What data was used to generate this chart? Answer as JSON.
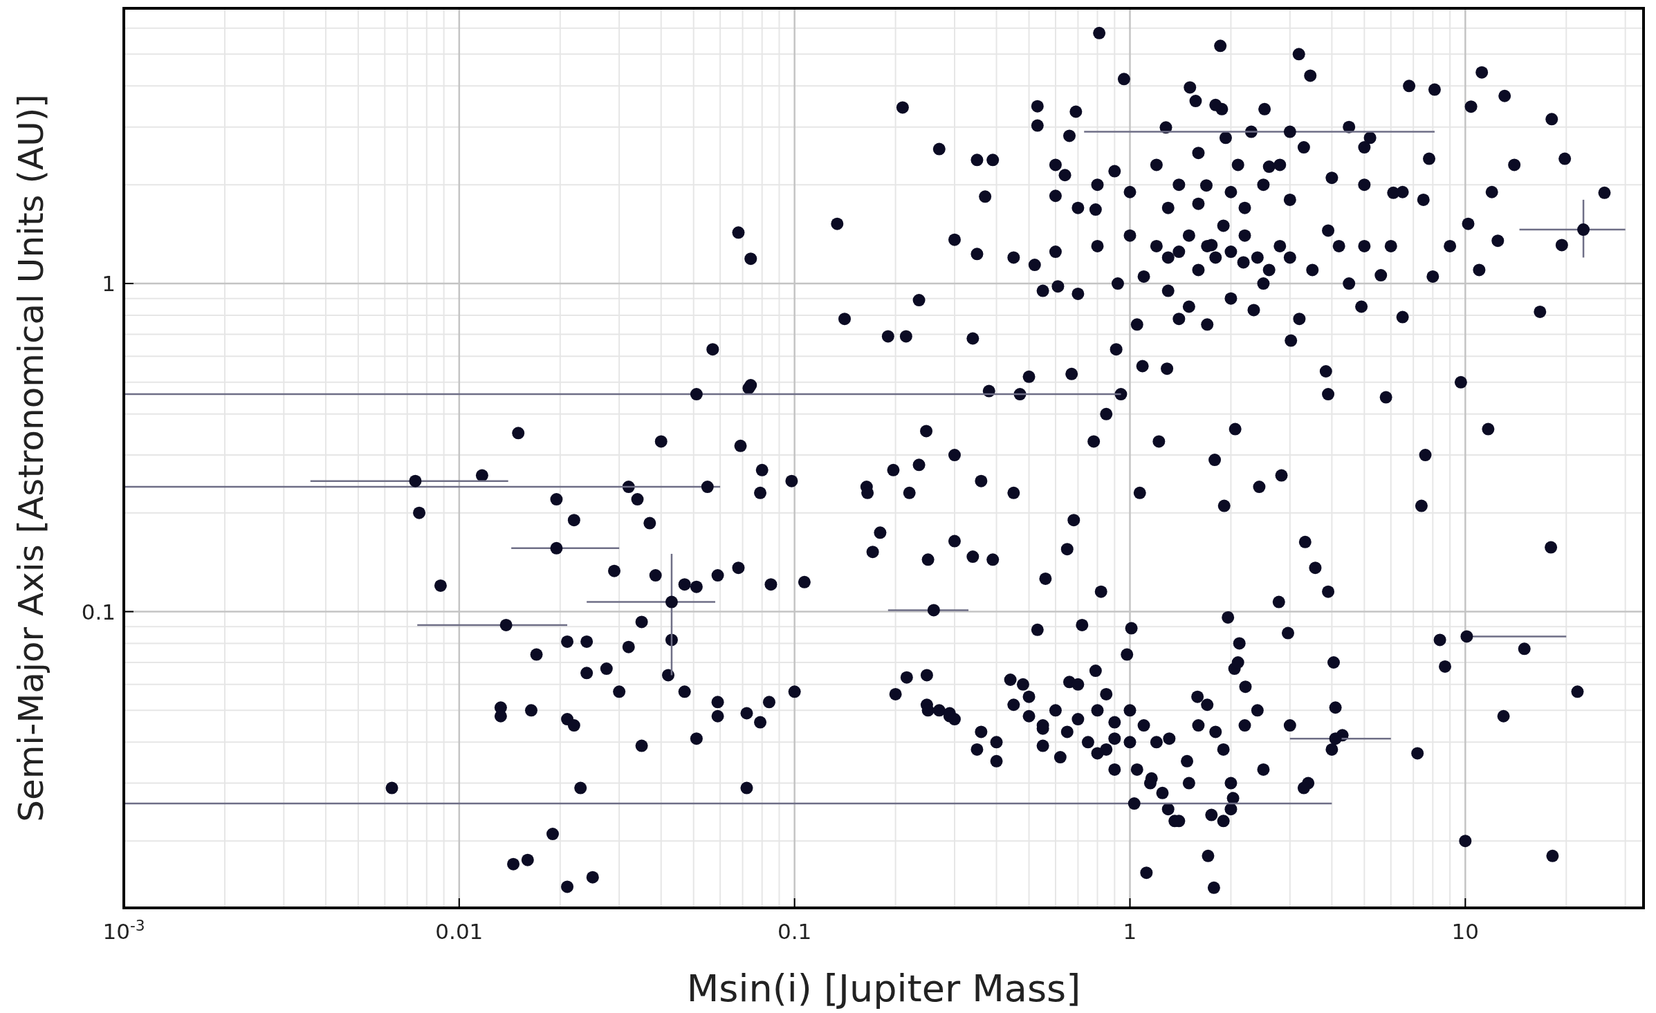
{
  "chart_data": {
    "type": "scatter",
    "xlabel": "Msin(i) [Jupiter Mass]",
    "ylabel": "Semi-Major Axis [Astronomical Units (AU)]",
    "log": "xy",
    "grid": true,
    "marker": "circle",
    "xlim": [
      0.001,
      34
    ],
    "ylim": [
      0.0125,
      6.9
    ],
    "xticks": [
      {
        "value": 0.001,
        "label": "10$^{-3}$"
      },
      0.01,
      0.1,
      1,
      10
    ],
    "yticks": [
      0.1,
      1
    ],
    "series": [
      {
        "color": "#0b0b24",
        "x": [
          0.0063,
          0.0076,
          0.0088,
          0.0117,
          0.015,
          0.0133,
          0.0133,
          0.0164,
          0.017,
          0.0195,
          0.021,
          0.024,
          0.021,
          0.022,
          0.022,
          0.019,
          0.021,
          0.025,
          0.0145,
          0.016,
          0.023,
          0.024,
          0.0275,
          0.029,
          0.03,
          0.032,
          0.034,
          0.032,
          0.035,
          0.035,
          0.037,
          0.0385,
          0.04,
          0.042,
          0.043,
          0.047,
          0.047,
          0.051,
          0.051,
          0.057,
          0.059,
          0.059,
          0.059,
          0.068,
          0.068,
          0.069,
          0.072,
          0.072,
          0.073,
          0.074,
          0.074,
          0.079,
          0.08,
          0.079,
          0.085,
          0.084,
          0.098,
          0.1,
          0.107,
          0.134,
          0.141,
          0.164,
          0.165,
          0.171,
          0.18,
          0.19,
          0.197,
          0.2,
          0.21,
          0.215,
          0.216,
          0.22,
          0.235,
          0.235,
          0.247,
          0.248,
          0.248,
          0.25,
          0.25,
          0.27,
          0.27,
          0.29,
          0.29,
          0.3,
          0.3,
          0.3,
          0.34,
          0.34,
          0.35,
          0.35,
          0.36,
          0.37,
          0.39,
          0.38,
          0.36,
          0.39,
          0.4,
          0.44,
          0.45,
          0.47,
          0.5,
          0.52,
          0.53,
          0.53,
          0.53,
          0.55,
          0.56,
          0.6,
          0.61,
          0.64,
          0.66,
          0.67,
          0.65,
          0.66,
          0.68,
          0.69,
          0.72,
          0.79,
          0.78,
          0.79,
          0.81,
          0.82,
          0.85,
          0.91,
          0.92,
          0.94,
          0.9,
          0.85,
          0.96,
          0.98,
          1.01,
          1.07,
          1.09,
          1.05,
          1.12,
          1.16,
          1.22,
          1.28,
          1.31,
          1.29,
          1.36,
          1.48,
          1.51,
          1.57,
          1.59,
          1.69,
          1.75,
          1.71,
          1.78,
          1.79,
          1.86,
          1.88,
          1.93,
          1.91,
          1.96,
          2.06,
          2.03,
          2.12,
          2.21,
          2.18,
          2.34,
          2.43,
          2.52,
          2.6,
          2.78,
          2.83,
          2.96,
          3.02,
          3.19,
          3.33,
          3.45,
          3.57,
          3.84,
          3.9,
          3.9,
          4.05,
          4.1,
          3.9,
          4.5,
          4.9,
          5.2,
          5.6,
          5.8,
          6.1,
          6.5,
          6.8,
          7.2,
          7.4,
          7.6,
          7.8,
          8.4,
          8.7,
          8.1,
          9.7,
          10,
          10.2,
          10.4,
          11.2,
          11.7,
          12.5,
          13,
          13.1,
          15,
          16.7,
          18,
          18.1,
          18.2,
          19.4,
          19.8,
          21.6,
          26,
          1.2,
          1.3,
          1.4,
          1.5,
          1.6,
          1.7,
          1.8,
          1.9,
          2.0,
          2.2,
          2.4,
          2.6,
          2.8,
          1.1,
          1.3,
          1.5,
          1.4,
          1.7,
          2.0,
          2.5,
          3.0,
          3.5,
          4.2,
          5.0,
          6.0,
          0.8,
          0.9,
          1.0,
          1.3,
          1.6,
          2.0,
          2.5,
          3.0,
          4.0,
          5.0,
          6.5,
          1.2,
          1.6,
          2.1,
          2.8,
          3.3,
          5,
          0.7,
          0.6,
          0.45,
          0.7,
          0.55,
          0.6,
          1.8,
          2.3,
          0.8,
          1.0,
          2.2,
          1.4,
          3.2,
          4.5,
          8,
          7.5,
          9,
          11,
          12,
          14,
          0.45,
          0.5,
          0.55,
          0.6,
          0.65,
          0.7,
          0.75,
          0.8,
          0.9,
          1.0,
          1.1,
          1.2,
          0.5,
          0.55,
          0.62,
          0.85,
          1.05,
          1.15,
          1.3,
          1.4,
          1.25,
          1.5,
          1.6,
          1.8,
          1.9,
          2.0,
          2.2,
          2.5,
          1.75,
          1.9,
          2.0,
          2.4,
          0.4,
          0.35,
          0.3,
          0.48,
          0.7,
          0.8,
          0.9,
          1.0,
          1.7,
          2.05,
          2.1,
          3.0,
          4.0,
          4.3,
          3.4,
          3.3
        ],
        "values": [
          0.029,
          0.2,
          0.12,
          0.26,
          0.35,
          0.048,
          0.051,
          0.05,
          0.074,
          0.22,
          0.081,
          0.081,
          0.047,
          0.045,
          0.19,
          0.021,
          0.0145,
          0.0155,
          0.017,
          0.0175,
          0.029,
          0.065,
          0.067,
          0.133,
          0.057,
          0.24,
          0.22,
          0.078,
          0.093,
          0.039,
          0.186,
          0.129,
          0.33,
          0.064,
          0.082,
          0.121,
          0.057,
          0.041,
          0.119,
          0.63,
          0.129,
          0.053,
          0.048,
          0.136,
          1.43,
          0.32,
          0.049,
          0.029,
          0.48,
          0.49,
          1.19,
          0.23,
          0.27,
          0.046,
          0.121,
          0.053,
          0.25,
          0.057,
          0.123,
          1.52,
          0.78,
          0.24,
          0.23,
          0.152,
          0.174,
          0.69,
          0.27,
          0.056,
          3.44,
          0.69,
          0.063,
          0.23,
          0.28,
          0.89,
          0.355,
          0.052,
          0.064,
          0.05,
          0.144,
          2.57,
          0.05,
          0.048,
          0.049,
          0.3,
          0.164,
          1.36,
          0.68,
          0.147,
          2.38,
          1.23,
          0.25,
          1.84,
          2.38,
          0.47,
          0.043,
          0.144,
          0.035,
          0.062,
          0.23,
          0.46,
          0.52,
          1.14,
          3.47,
          3.03,
          0.088,
          0.044,
          0.126,
          1.85,
          0.98,
          2.14,
          2.82,
          0.53,
          0.155,
          0.061,
          0.19,
          3.34,
          0.091,
          1.68,
          0.33,
          0.066,
          5.8,
          0.115,
          0.4,
          0.63,
          1.0,
          0.46,
          0.041,
          0.038,
          4.2,
          0.074,
          0.089,
          0.23,
          0.56,
          0.75,
          0.016,
          0.031,
          0.33,
          2.99,
          0.041,
          0.55,
          0.023,
          0.035,
          3.96,
          3.6,
          0.055,
          1.99,
          1.31,
          0.018,
          0.0144,
          0.29,
          5.3,
          3.4,
          2.78,
          0.21,
          0.096,
          0.36,
          0.027,
          0.08,
          0.059,
          1.16,
          0.83,
          0.24,
          3.4,
          2.27,
          0.107,
          0.26,
          0.086,
          0.67,
          5.0,
          0.163,
          4.3,
          0.136,
          0.54,
          0.46,
          0.115,
          0.07,
          0.051,
          1.45,
          3.0,
          0.85,
          2.78,
          1.06,
          0.45,
          1.89,
          0.79,
          4.0,
          0.037,
          0.21,
          0.3,
          2.4,
          0.082,
          0.068,
          3.9,
          0.5,
          0.02,
          1.52,
          3.46,
          4.4,
          0.36,
          1.35,
          0.048,
          3.73,
          0.077,
          0.82,
          0.157,
          3.17,
          0.018,
          1.31,
          2.4,
          0.057,
          1.89,
          1.3,
          1.2,
          1.25,
          1.4,
          1.1,
          1.3,
          1.2,
          1.5,
          1.25,
          1.4,
          1.2,
          1.1,
          1.3,
          1.05,
          0.95,
          0.85,
          0.78,
          0.75,
          0.9,
          1.0,
          1.2,
          1.1,
          1.3,
          1.3,
          1.3,
          2.0,
          2.2,
          1.9,
          1.7,
          1.75,
          1.9,
          2.0,
          1.8,
          2.1,
          2.0,
          1.9,
          2.3,
          2.5,
          2.3,
          2.3,
          2.6,
          2.6,
          1.7,
          1.25,
          1.2,
          0.93,
          0.95,
          2.3,
          3.5,
          2.9,
          1.3,
          1.4,
          1.7,
          2.0,
          0.78,
          1.0,
          1.05,
          1.8,
          1.3,
          1.1,
          1.9,
          2.3,
          0.052,
          0.048,
          0.045,
          0.05,
          0.043,
          0.047,
          0.04,
          0.05,
          0.046,
          0.05,
          0.045,
          0.04,
          0.055,
          0.039,
          0.036,
          0.056,
          0.033,
          0.03,
          0.025,
          0.023,
          0.028,
          0.03,
          0.045,
          0.043,
          0.038,
          0.03,
          0.045,
          0.033,
          0.024,
          0.023,
          0.025,
          0.05,
          0.04,
          0.038,
          0.047,
          0.06,
          0.06,
          0.037,
          0.033,
          0.04,
          0.052,
          0.067,
          0.07,
          0.045,
          0.038,
          0.042,
          0.03,
          0.029
        ]
      },
      {
        "color": "#0b0b24",
        "x": [
          0.051,
          0.055,
          1.03,
          0.0074,
          0.0195,
          0.0138,
          0.043,
          0.26,
          10.1,
          22.5,
          4.1,
          3.0
        ],
        "values": [
          0.46,
          0.24,
          0.026,
          0.25,
          0.156,
          0.091,
          0.107,
          0.101,
          0.084,
          1.46,
          0.041,
          2.9
        ],
        "xerrors": [
          [
            0.001,
            0.94
          ],
          [
            0.001,
            0.06
          ],
          [
            0.001,
            4.0
          ],
          [
            0.0036,
            0.014
          ],
          [
            0.0143,
            0.03
          ],
          [
            0.0075,
            0.021
          ],
          [
            0.024,
            0.058
          ],
          [
            0.19,
            0.33
          ],
          [
            10,
            20
          ],
          [
            14.5,
            30
          ],
          [
            3.0,
            6.0
          ],
          [
            0.73,
            8.1
          ]
        ],
        "errors": [
          null,
          null,
          null,
          null,
          null,
          null,
          [
            0.064,
            0.15
          ],
          null,
          null,
          [
            1.2,
            1.8
          ],
          null,
          null
        ]
      }
    ]
  }
}
